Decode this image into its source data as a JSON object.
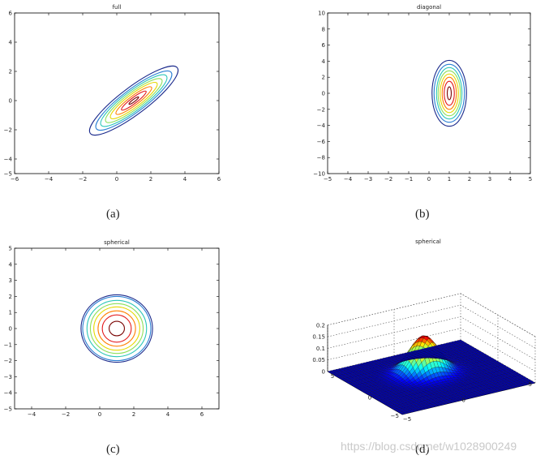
{
  "chart_data": [
    {
      "id": "a",
      "type": "contour",
      "title": "full",
      "panel_label": "(a)",
      "xlim": [
        -6,
        6
      ],
      "ylim": [
        -5,
        6
      ],
      "xticks": [
        -6,
        -4,
        -2,
        0,
        2,
        4,
        6
      ],
      "yticks": [
        -5,
        -4,
        -2,
        0,
        2,
        4,
        6
      ],
      "mean": [
        1,
        0
      ],
      "contour_levels": [
        {
          "rx": 0.35,
          "ry": 0.08,
          "color": "#7a0403"
        },
        {
          "rx": 0.9,
          "ry": 0.2,
          "color": "#e31a1c"
        },
        {
          "rx": 1.3,
          "ry": 0.32,
          "color": "#ff7f00"
        },
        {
          "rx": 1.7,
          "ry": 0.45,
          "color": "#e6d800"
        },
        {
          "rx": 2.05,
          "ry": 0.56,
          "color": "#8ee05a"
        },
        {
          "rx": 2.4,
          "ry": 0.67,
          "color": "#2bc7b8"
        },
        {
          "rx": 2.75,
          "ry": 0.78,
          "color": "#2a7fd4"
        },
        {
          "rx": 3.2,
          "ry": 0.92,
          "color": "#1b2a8c"
        }
      ],
      "rotation_deg": 37
    },
    {
      "id": "b",
      "type": "contour",
      "title": "diagonal",
      "panel_label": "(b)",
      "xlim": [
        -5,
        5
      ],
      "ylim": [
        -10,
        10
      ],
      "xticks": [
        -5,
        -4,
        -3,
        -2,
        -1,
        0,
        1,
        2,
        3,
        4,
        5
      ],
      "yticks": [
        -10,
        -8,
        -6,
        -4,
        -2,
        0,
        2,
        4,
        6,
        8,
        10
      ],
      "mean": [
        1,
        0
      ],
      "contour_levels": [
        {
          "rx": 0.1,
          "ry": 0.8,
          "color": "#7a0403"
        },
        {
          "rx": 0.25,
          "ry": 1.5,
          "color": "#e31a1c"
        },
        {
          "rx": 0.35,
          "ry": 2.0,
          "color": "#ff7f00"
        },
        {
          "rx": 0.45,
          "ry": 2.4,
          "color": "#e6d800"
        },
        {
          "rx": 0.55,
          "ry": 2.8,
          "color": "#8ee05a"
        },
        {
          "rx": 0.63,
          "ry": 3.2,
          "color": "#2bc7b8"
        },
        {
          "rx": 0.75,
          "ry": 3.6,
          "color": "#2a7fd4"
        },
        {
          "rx": 0.85,
          "ry": 4.1,
          "color": "#1b2a8c"
        }
      ],
      "rotation_deg": 0
    },
    {
      "id": "c",
      "type": "contour",
      "title": "spherical",
      "panel_label": "(c)",
      "xlim": [
        -5,
        7
      ],
      "ylim": [
        -5,
        5
      ],
      "xticks": [
        -4,
        -2,
        0,
        2,
        4,
        6
      ],
      "yticks": [
        -5,
        -4,
        -3,
        -2,
        -1,
        0,
        1,
        2,
        3,
        4,
        5
      ],
      "mean": [
        1,
        0
      ],
      "contour_levels": [
        {
          "r": 0.45,
          "color": "#7a0403"
        },
        {
          "r": 0.85,
          "color": "#e31a1c"
        },
        {
          "r": 1.1,
          "color": "#ff7f00"
        },
        {
          "r": 1.35,
          "color": "#e6d800"
        },
        {
          "r": 1.55,
          "color": "#8ee05a"
        },
        {
          "r": 1.75,
          "color": "#2bc7b8"
        },
        {
          "r": 2.0,
          "color": "#2a7fd4"
        },
        {
          "r": 2.1,
          "color": "#1b2a8c"
        }
      ]
    },
    {
      "id": "d",
      "type": "surface",
      "title": "spherical",
      "panel_label": "(d)",
      "zlim": [
        0,
        0.2
      ],
      "zticks": [
        0,
        0.05,
        0.1,
        0.15,
        0.2
      ],
      "xtick_labels": [
        "5",
        "0",
        "-5"
      ],
      "ytick_labels": [
        "-5",
        "0",
        "5"
      ],
      "peak_value": 0.16,
      "mean": [
        1,
        0
      ],
      "grid_n": 41
    }
  ],
  "watermark": "https://blog.csdn.net/w1028900249"
}
